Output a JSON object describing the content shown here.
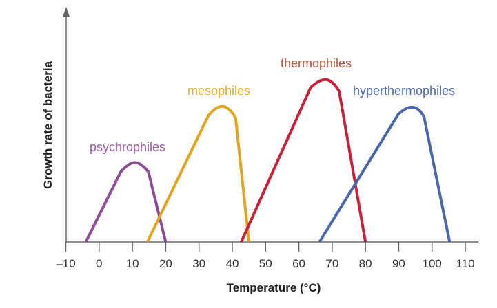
{
  "chart_data": {
    "type": "line",
    "title": "",
    "xlabel": "Temperature (°C)",
    "ylabel": "Growth rate of bacteria",
    "xlim": [
      -10,
      110
    ],
    "ylim": [
      0,
      1
    ],
    "xticks": [
      -10,
      0,
      10,
      20,
      30,
      40,
      50,
      60,
      70,
      80,
      90,
      100,
      110
    ],
    "xtick_labels": [
      "–10",
      "0",
      "10",
      "20",
      "30",
      "40",
      "50",
      "60",
      "70",
      "80",
      "90",
      "100",
      "110"
    ],
    "grid": false,
    "legend": "none (series labelled directly above curves)",
    "series": [
      {
        "name": "psychrophiles",
        "color": "#8e4b97",
        "label_color": "#9a5aa2",
        "points": [
          [
            -4,
            0
          ],
          [
            6.5,
            0.3
          ],
          [
            9,
            0.34
          ],
          [
            12.5,
            0.34
          ],
          [
            14.8,
            0.3
          ],
          [
            20,
            0
          ]
        ]
      },
      {
        "name": "mesophiles",
        "color": "#e2a41c",
        "label_color": "#e0aa2a",
        "points": [
          [
            14.5,
            0
          ],
          [
            32.8,
            0.54
          ],
          [
            35,
            0.58
          ],
          [
            39,
            0.58
          ],
          [
            41,
            0.53
          ],
          [
            45,
            0
          ]
        ]
      },
      {
        "name": "thermophiles",
        "color": "#c8203a",
        "label_color": "#b4553e",
        "points": [
          [
            42.7,
            0
          ],
          [
            63.5,
            0.66
          ],
          [
            66,
            0.695
          ],
          [
            70,
            0.695
          ],
          [
            72.1,
            0.645
          ],
          [
            80,
            0
          ]
        ]
      },
      {
        "name": "hyperthermophiles",
        "color": "#4a67ad",
        "label_color": "#5068a8",
        "points": [
          [
            66.2,
            0
          ],
          [
            89.8,
            0.545
          ],
          [
            92,
            0.577
          ],
          [
            96,
            0.577
          ],
          [
            97.6,
            0.535
          ],
          [
            105.3,
            0
          ]
        ]
      }
    ]
  }
}
